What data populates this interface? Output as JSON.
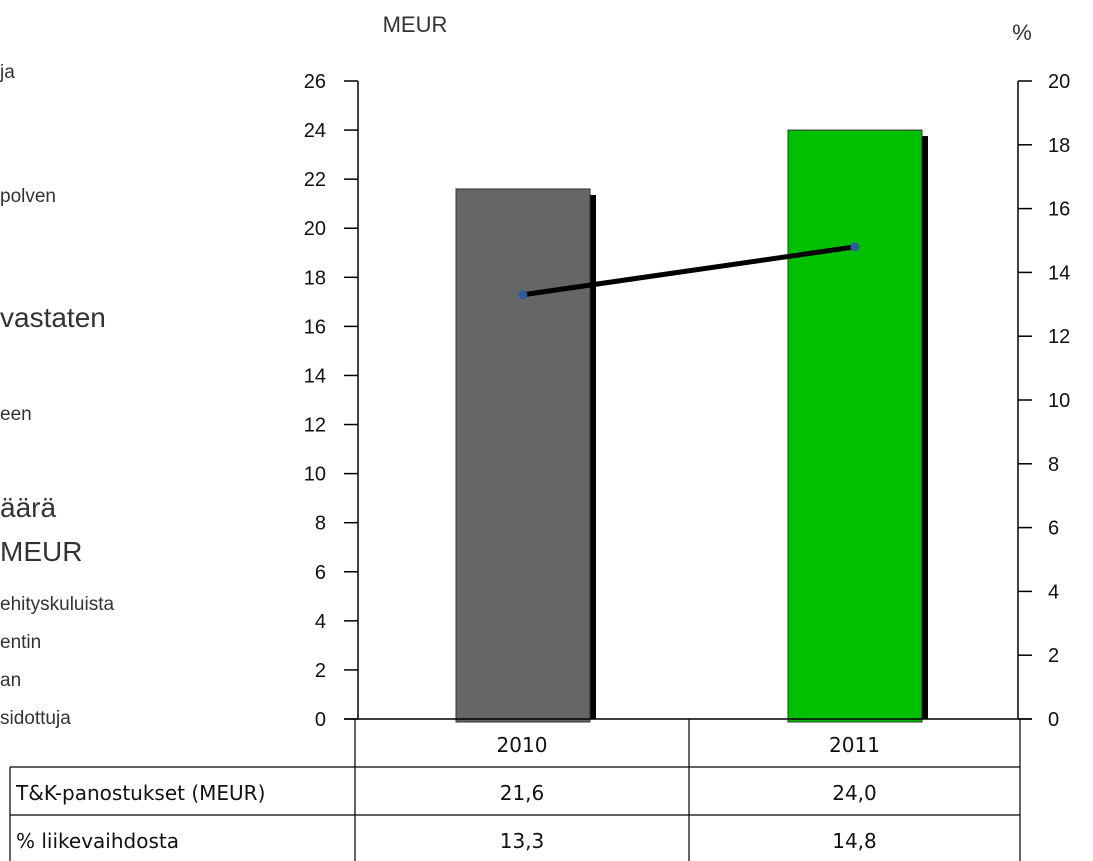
{
  "left_text": {
    "line1": "ja",
    "line2": "polven",
    "line3": "vastaten",
    "line4": "een",
    "line5": "äärä",
    "line6": "MEUR",
    "line7": "ehityskuluista",
    "line8": "entin",
    "line9": "an",
    "line10": "sidottuja"
  },
  "chart_data": {
    "type": "bar",
    "categories": [
      "2010",
      "2011"
    ],
    "series": [
      {
        "name": "T&K-panostukset (MEUR)",
        "type": "bar",
        "axis": "left",
        "values": [
          21.6,
          24.0
        ],
        "colors": [
          "#666666",
          "#00c000"
        ]
      },
      {
        "name": "% liikevaihdosta",
        "type": "line",
        "axis": "right",
        "values": [
          13.3,
          14.8
        ],
        "color": "#000000",
        "marker_color": "#2e5b9a"
      }
    ],
    "y_left": {
      "label": "MEUR",
      "min": 0,
      "max": 26,
      "step": 2
    },
    "y_right": {
      "label": "%",
      "min": 0,
      "max": 20,
      "step": 2
    },
    "grid": false,
    "table": {
      "rows": [
        {
          "label": "T&K-panostukset (MEUR)",
          "values": [
            "21,6",
            "24,0"
          ]
        },
        {
          "label": "% liikevaihdosta",
          "values": [
            "13,3",
            "14,8"
          ]
        }
      ]
    }
  }
}
